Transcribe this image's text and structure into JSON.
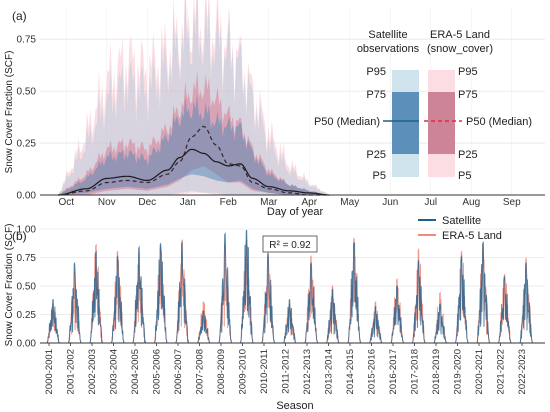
{
  "chart_data": [
    {
      "panel_label": "(a)",
      "type": "area",
      "xlabel": "Day of year",
      "ylabel": "Snow Cover Fraction (SCF)",
      "ylim": [
        0,
        0.9
      ],
      "yticks": [
        "0.00",
        "0.25",
        "0.50",
        "0.75"
      ],
      "ytick_values": [
        0,
        0.25,
        0.5,
        0.75
      ],
      "grid": true,
      "months": [
        "Oct",
        "Nov",
        "Dec",
        "Jan",
        "Feb",
        "Mar",
        "Apr",
        "May",
        "Jun",
        "Jul",
        "Aug",
        "Sep"
      ],
      "legend_columns": [
        {
          "title": "Satellite observations",
          "title_lines": [
            "Satellite",
            "observations"
          ],
          "color": "#2c6a9a"
        },
        {
          "title": "ERA-5 Land (snow_cover)",
          "title_lines": [
            "ERA-5 Land",
            "(snow_cover)"
          ],
          "color": "#e8728a"
        }
      ],
      "legend_left_labels": [
        "P95",
        "P75",
        "P50 (Median)",
        "P25",
        "P5"
      ],
      "legend_right_labels": [
        "P95",
        "P75",
        "P50 (Median)",
        "P25",
        "P5"
      ],
      "series": [
        {
          "name": "Satellite",
          "x_month": [
            0.3,
            1.0,
            1.5,
            2.0,
            2.5,
            3.0,
            3.3,
            3.6,
            3.9,
            4.2,
            4.5,
            4.8,
            5.1,
            5.5,
            6.0,
            6.5,
            7.0
          ],
          "p50": [
            0.0,
            0.03,
            0.08,
            0.09,
            0.07,
            0.12,
            0.18,
            0.22,
            0.2,
            0.16,
            0.14,
            0.15,
            0.08,
            0.04,
            0.02,
            0.01,
            0.0
          ],
          "p25": [
            0.0,
            0.01,
            0.03,
            0.04,
            0.03,
            0.05,
            0.08,
            0.1,
            0.09,
            0.07,
            0.06,
            0.07,
            0.03,
            0.01,
            0.0,
            0.0,
            0.0
          ],
          "p75": [
            0.0,
            0.08,
            0.18,
            0.2,
            0.17,
            0.28,
            0.38,
            0.42,
            0.4,
            0.35,
            0.33,
            0.32,
            0.2,
            0.1,
            0.05,
            0.02,
            0.0
          ],
          "p5": [
            0.0,
            0.0,
            0.0,
            0.0,
            0.0,
            0.0,
            0.01,
            0.02,
            0.01,
            0.01,
            0.0,
            0.0,
            0.0,
            0.0,
            0.0,
            0.0,
            0.0
          ],
          "p95": [
            0.0,
            0.25,
            0.45,
            0.55,
            0.5,
            0.62,
            0.72,
            0.78,
            0.76,
            0.72,
            0.68,
            0.62,
            0.45,
            0.25,
            0.12,
            0.05,
            0.0
          ]
        },
        {
          "name": "ERA-5 Land",
          "x_month": [
            0.3,
            1.0,
            1.5,
            2.0,
            2.5,
            3.0,
            3.3,
            3.6,
            3.9,
            4.2,
            4.5,
            4.8,
            5.1,
            5.5,
            6.0,
            6.5,
            7.0
          ],
          "p50": [
            0.0,
            0.02,
            0.06,
            0.07,
            0.06,
            0.1,
            0.16,
            0.28,
            0.33,
            0.24,
            0.15,
            0.14,
            0.06,
            0.03,
            0.01,
            0.0,
            0.0
          ],
          "p25": [
            0.0,
            0.0,
            0.02,
            0.03,
            0.02,
            0.04,
            0.07,
            0.12,
            0.14,
            0.1,
            0.06,
            0.06,
            0.02,
            0.01,
            0.0,
            0.0,
            0.0
          ],
          "p75": [
            0.0,
            0.1,
            0.22,
            0.25,
            0.22,
            0.32,
            0.42,
            0.5,
            0.52,
            0.46,
            0.38,
            0.34,
            0.22,
            0.12,
            0.05,
            0.02,
            0.0
          ],
          "p5": [
            0.0,
            0.0,
            0.0,
            0.0,
            0.0,
            0.0,
            0.0,
            0.01,
            0.01,
            0.0,
            0.0,
            0.0,
            0.0,
            0.0,
            0.0,
            0.0,
            0.0
          ],
          "p95": [
            0.0,
            0.3,
            0.55,
            0.65,
            0.6,
            0.7,
            0.78,
            0.85,
            0.84,
            0.8,
            0.72,
            0.65,
            0.5,
            0.3,
            0.15,
            0.06,
            0.0
          ]
        }
      ]
    },
    {
      "panel_label": "(b)",
      "type": "line",
      "xlabel": "Season",
      "ylabel": "Snow Cover Fraction (SCF)",
      "ylim": [
        0,
        1.0
      ],
      "yticks": [
        "0.00",
        "0.25",
        "0.50",
        "0.75",
        "1.00"
      ],
      "ytick_values": [
        0,
        0.25,
        0.5,
        0.75,
        1.0
      ],
      "grid": true,
      "annotation": "R² = 0.92",
      "legend_position": "top-right",
      "categories": [
        "2000-2001",
        "2001-2002",
        "2002-2003",
        "2003-2004",
        "2004-2005",
        "2005-2006",
        "2006-2007",
        "2007-2008",
        "2008-2009",
        "2009-2010",
        "2010-2011",
        "2011-2012",
        "2012-2013",
        "2013-2014",
        "2014-2015",
        "2015-2016",
        "2016-2017",
        "2017-2018",
        "2018-2019",
        "2019-2020",
        "2020-2021",
        "2021-2022",
        "2022-2023"
      ],
      "series": [
        {
          "name": "Satellite",
          "color": "#1f5f8b",
          "season_peaks": [
            0.38,
            0.7,
            0.8,
            0.76,
            0.84,
            0.87,
            0.88,
            0.28,
            0.96,
            0.99,
            0.78,
            0.38,
            0.7,
            0.47,
            0.88,
            0.32,
            0.5,
            0.72,
            0.34,
            0.76,
            0.88,
            0.58,
            0.7
          ]
        },
        {
          "name": "ERA-5 Land",
          "color": "#f08a7a",
          "season_peaks": [
            0.34,
            0.62,
            0.86,
            0.8,
            0.8,
            0.84,
            0.9,
            0.36,
            0.86,
            0.9,
            0.8,
            0.34,
            0.76,
            0.5,
            0.92,
            0.36,
            0.56,
            0.82,
            0.44,
            0.8,
            0.88,
            0.6,
            0.74
          ]
        }
      ]
    }
  ]
}
